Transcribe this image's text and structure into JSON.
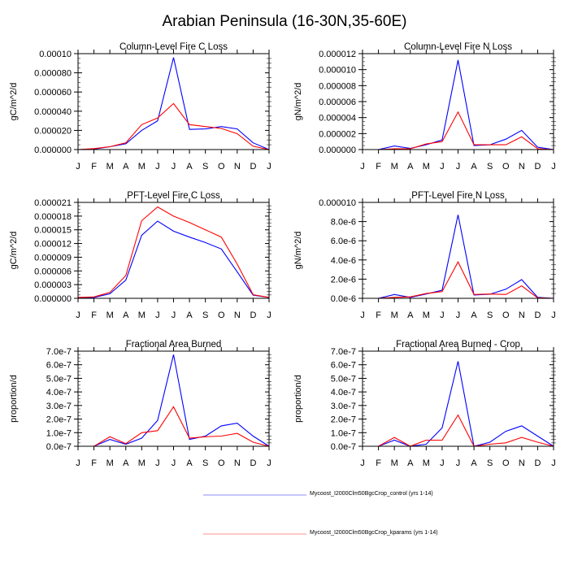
{
  "title": "Arabian Peninsula (16-30N,35-60E)",
  "colors": {
    "control": "#0000ff",
    "kparams": "#ff0000"
  },
  "legend": [
    {
      "label": "Mycoost_I2000Clm50BgcCrop_control (yrs 1-14)",
      "color": "#0000ff"
    },
    {
      "label": "Mycoost_I2000Clm50BgcCrop_kparams (yrs 1-14)",
      "color": "#ff0000"
    }
  ],
  "chart_data": [
    {
      "type": "line",
      "title": "Column-Level Fire C Loss",
      "ylabel": "gC/m^2/d",
      "categories": [
        "J",
        "F",
        "M",
        "A",
        "M",
        "J",
        "J",
        "A",
        "S",
        "O",
        "N",
        "D",
        "J"
      ],
      "ylim": [
        0,
        0.0001
      ],
      "yticks": [
        0,
        2e-05,
        4e-05,
        6e-05,
        8e-05,
        0.0001
      ],
      "ytick_labels": [
        "0.000000",
        "0.000020",
        "0.000040",
        "0.000060",
        "0.000080",
        "0.00010"
      ],
      "series": [
        {
          "name": "Mycoost_I2000Clm50BgcCrop_control (yrs 1-14)",
          "color": "#0000ff",
          "values": [
            0,
            5e-07,
            3e-06,
            6e-06,
            2e-05,
            3e-05,
            9.6e-05,
            2.1e-05,
            2.15e-05,
            2.4e-05,
            2.15e-05,
            7e-06,
            0
          ]
        },
        {
          "name": "Mycoost_I2000Clm50BgcCrop_kparams (yrs 1-14)",
          "color": "#ff0000",
          "values": [
            0,
            1e-06,
            3e-06,
            7e-06,
            2.6e-05,
            3.3e-05,
            4.8e-05,
            2.6e-05,
            2.4e-05,
            2.2e-05,
            1.65e-05,
            3.5e-06,
            0
          ]
        }
      ]
    },
    {
      "type": "line",
      "title": "Column-Level Fire N Loss",
      "ylabel": "gN/m^2/d",
      "categories": [
        "J",
        "F",
        "M",
        "A",
        "M",
        "J",
        "J",
        "A",
        "S",
        "O",
        "N",
        "D",
        "J"
      ],
      "ylim": [
        0,
        1.2e-05
      ],
      "yticks": [
        0,
        2e-06,
        4e-06,
        6e-06,
        8e-06,
        1e-05,
        1.2e-05
      ],
      "ytick_labels": [
        "0.000000",
        "0.000002",
        "0.000004",
        "0.000006",
        "0.000008",
        "0.000010",
        "0.000012"
      ],
      "series": [
        {
          "name": "Mycoost_I2000Clm50BgcCrop_control (yrs 1-14)",
          "color": "#0000ff",
          "values": [
            0,
            0,
            4.5e-07,
            1.5e-07,
            6e-07,
            1.2e-06,
            1.12e-05,
            5e-07,
            6e-07,
            1.3e-06,
            2.4e-06,
            3e-07,
            0
          ]
        },
        {
          "name": "Mycoost_I2000Clm50BgcCrop_kparams (yrs 1-14)",
          "color": "#ff0000",
          "values": [
            0,
            0,
            1e-07,
            1e-07,
            7e-07,
            1e-06,
            4.7e-06,
            6e-07,
            6e-07,
            6e-07,
            1.6e-06,
            1e-07,
            0
          ]
        }
      ]
    },
    {
      "type": "line",
      "title": "PFT-Level Fire C Loss",
      "ylabel": "gC/m^2/d",
      "categories": [
        "J",
        "F",
        "M",
        "A",
        "M",
        "J",
        "J",
        "A",
        "S",
        "O",
        "N",
        "D",
        "J"
      ],
      "ylim": [
        0,
        2.1e-05
      ],
      "yticks": [
        0,
        3e-06,
        6e-06,
        9e-06,
        1.2e-05,
        1.5e-05,
        1.8e-05,
        2.1e-05
      ],
      "ytick_labels": [
        "0.000000",
        "0.000003",
        "0.000006",
        "0.000009",
        "0.000012",
        "0.000015",
        "0.000018",
        "0.000021"
      ],
      "series": [
        {
          "name": "Mycoost_I2000Clm50BgcCrop_control (yrs 1-14)",
          "color": "#0000ff",
          "values": [
            2e-07,
            2e-07,
            1e-06,
            4e-06,
            1.38e-05,
            1.69e-05,
            1.47e-05,
            1.34e-05,
            1.22e-05,
            1.08e-05,
            5.8e-06,
            7e-07,
            2e-07
          ]
        },
        {
          "name": "Mycoost_I2000Clm50BgcCrop_kparams (yrs 1-14)",
          "color": "#ff0000",
          "values": [
            2e-07,
            3e-07,
            1.3e-06,
            5e-06,
            1.7e-05,
            2e-05,
            1.8e-05,
            1.66e-05,
            1.5e-05,
            1.34e-05,
            7.5e-06,
            8e-07,
            2e-07
          ]
        }
      ]
    },
    {
      "type": "line",
      "title": "PFT-Level Fire N Loss",
      "ylabel": "gN/m^2/d",
      "categories": [
        "J",
        "F",
        "M",
        "A",
        "M",
        "J",
        "J",
        "A",
        "S",
        "O",
        "N",
        "D",
        "J"
      ],
      "ylim": [
        0,
        1e-05
      ],
      "yticks": [
        0,
        2e-06,
        4e-06,
        6e-06,
        8e-06,
        1e-05
      ],
      "ytick_labels": [
        "0.0e-6",
        "2.0e-6",
        "4.0e-6",
        "6.0e-6",
        "8.0e-6",
        "0.000010"
      ],
      "series": [
        {
          "name": "Mycoost_I2000Clm50BgcCrop_control (yrs 1-14)",
          "color": "#0000ff",
          "values": [
            0,
            0,
            4e-07,
            1e-07,
            4.5e-07,
            8.5e-07,
            8.7e-06,
            3.5e-07,
            4.2e-07,
            9.5e-07,
            1.95e-06,
            1e-07,
            0
          ]
        },
        {
          "name": "Mycoost_I2000Clm50BgcCrop_kparams (yrs 1-14)",
          "color": "#ff0000",
          "values": [
            0,
            0,
            1e-07,
            1.5e-07,
            5e-07,
            7e-07,
            3.8e-06,
            4e-07,
            4.5e-07,
            4e-07,
            1.3e-06,
            5e-08,
            0
          ]
        }
      ]
    },
    {
      "type": "line",
      "title": "Fractional Area Burned",
      "ylabel": "proportion/d",
      "categories": [
        "J",
        "F",
        "M",
        "A",
        "M",
        "J",
        "J",
        "A",
        "S",
        "O",
        "N",
        "D",
        "J"
      ],
      "ylim": [
        0,
        7e-07
      ],
      "yticks": [
        0,
        1e-07,
        2e-07,
        3e-07,
        4e-07,
        5e-07,
        6e-07,
        7e-07
      ],
      "ytick_labels": [
        "0.0e-7",
        "1.0e-7",
        "2.0e-7",
        "3.0e-7",
        "4.0e-7",
        "5.0e-7",
        "6.0e-7",
        "7.0e-7"
      ],
      "series": [
        {
          "name": "Mycoost_I2000Clm50BgcCrop_control (yrs 1-14)",
          "color": "#0000ff",
          "values": [
            0,
            0,
            5e-08,
            1.5e-08,
            6e-08,
            1.9e-07,
            6.75e-07,
            5e-08,
            7.5e-08,
            1.5e-07,
            1.7e-07,
            7.5e-08,
            0
          ]
        },
        {
          "name": "Mycoost_I2000Clm50BgcCrop_kparams (yrs 1-14)",
          "color": "#ff0000",
          "values": [
            0,
            0,
            7e-08,
            2e-08,
            1e-07,
            1.15e-07,
            2.9e-07,
            6e-08,
            7e-08,
            7.5e-08,
            9.5e-08,
            3e-08,
            0
          ]
        }
      ]
    },
    {
      "type": "line",
      "title": "Fractional Area Burned - Crop",
      "ylabel": "proportion/d",
      "categories": [
        "J",
        "F",
        "M",
        "A",
        "M",
        "J",
        "J",
        "A",
        "S",
        "O",
        "N",
        "D",
        "J"
      ],
      "ylim": [
        0,
        7e-07
      ],
      "yticks": [
        0,
        1e-07,
        2e-07,
        3e-07,
        4e-07,
        5e-07,
        6e-07,
        7e-07
      ],
      "ytick_labels": [
        "0.0e-7",
        "1.0e-7",
        "2.0e-7",
        "3.0e-7",
        "4.0e-7",
        "5.0e-7",
        "6.0e-7",
        "7.0e-7"
      ],
      "series": [
        {
          "name": "Mycoost_I2000Clm50BgcCrop_control (yrs 1-14)",
          "color": "#0000ff",
          "values": [
            0,
            0,
            4.5e-08,
            0,
            1.5e-08,
            1.35e-07,
            6.25e-07,
            0,
            3e-08,
            1.1e-07,
            1.5e-07,
            7.5e-08,
            0
          ]
        },
        {
          "name": "Mycoost_I2000Clm50BgcCrop_kparams (yrs 1-14)",
          "color": "#ff0000",
          "values": [
            0,
            0,
            6.5e-08,
            0,
            4.5e-08,
            4.5e-08,
            2.3e-07,
            0,
            1.5e-08,
            2.5e-08,
            6.5e-08,
            3e-08,
            0
          ]
        }
      ]
    }
  ]
}
